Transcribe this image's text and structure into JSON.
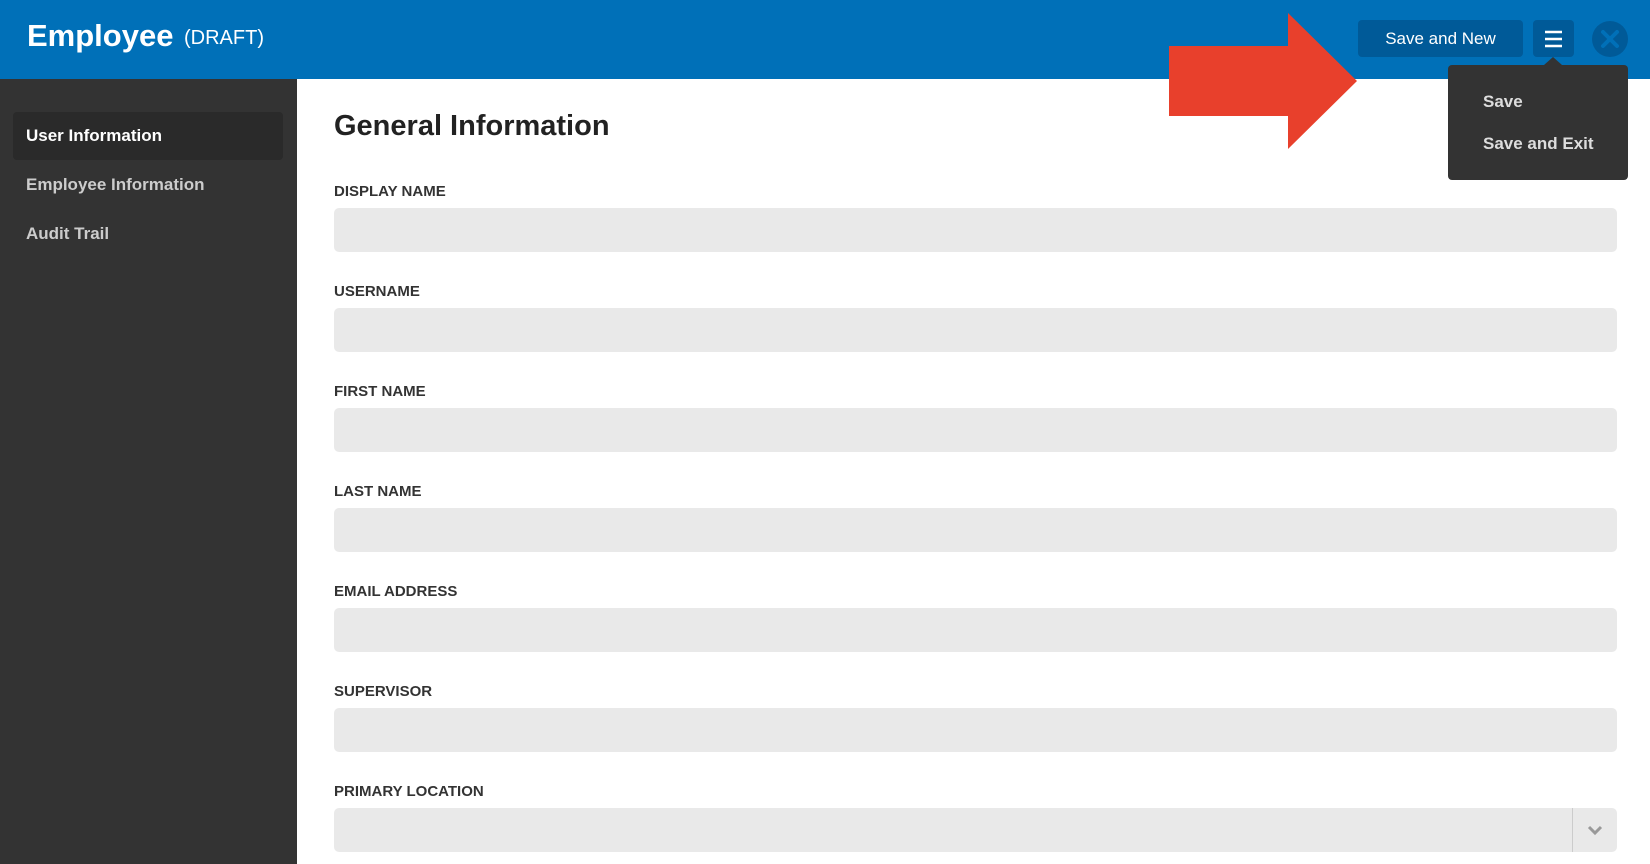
{
  "header": {
    "title": "Employee",
    "status": "(DRAFT)",
    "buttons": {
      "primary": "Save and New"
    }
  },
  "menu": {
    "items": [
      "Save",
      "Save and Exit"
    ]
  },
  "sidebar": {
    "items": [
      "User Information",
      "Employee Information",
      "Audit Trail"
    ]
  },
  "form": {
    "title": "General Information",
    "fields": [
      "DISPLAY NAME",
      "USERNAME",
      "FIRST NAME",
      "LAST NAME",
      "EMAIL ADDRESS",
      "SUPERVISOR",
      "PRIMARY LOCATION"
    ]
  }
}
